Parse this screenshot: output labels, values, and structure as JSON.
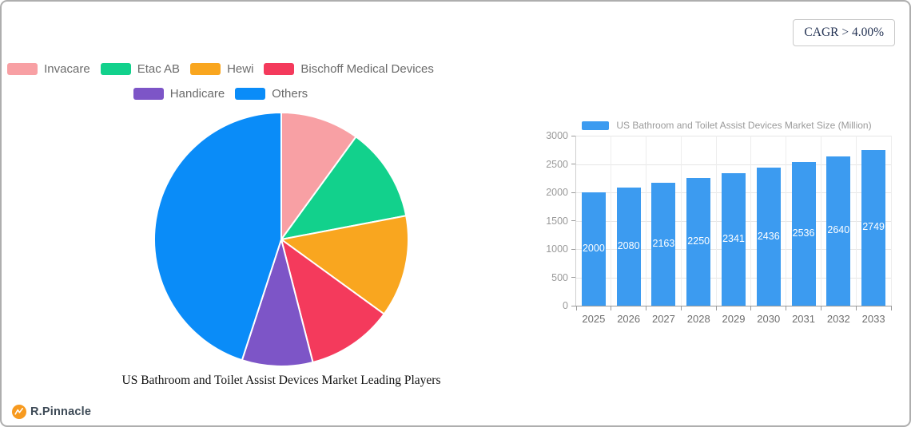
{
  "page": {
    "cagr_badge": "CAGR > 4.00%",
    "brand": "R.Pinnacle"
  },
  "colors": {
    "pie_border": "#ffffff",
    "bar_blue": "#3c9bf0",
    "brand_orange": "#f79a1f",
    "grid_line": "#e6e6e6",
    "axis_line": "#9a9a9a"
  },
  "chart_data": [
    {
      "type": "pie",
      "title": "US Bathroom and Toilet Assist Devices Market Leading Players",
      "labels": [
        "Invacare",
        "Etac AB",
        "Hewi",
        "Bischoff Medical Devices",
        "Handicare",
        "Others"
      ],
      "values_pct": [
        10,
        12,
        13,
        11,
        9,
        45
      ],
      "colors": [
        "#f8a0a4",
        "#12d18c",
        "#f9a61f",
        "#f43a5c",
        "#7d55c7",
        "#0a8cf8"
      ],
      "legend_rows": [
        [
          0,
          1,
          2,
          3
        ],
        [
          4,
          5
        ]
      ],
      "legend_position": "top",
      "start_angle_deg": 0,
      "clockwise": true
    },
    {
      "type": "bar",
      "legend": "US Bathroom and Toilet Assist Devices Market Size (Million)",
      "categories": [
        "2025",
        "2026",
        "2027",
        "2028",
        "2029",
        "2030",
        "2031",
        "2032",
        "2033"
      ],
      "values": [
        2000,
        2080,
        2163,
        2250,
        2341,
        2436,
        2536,
        2640,
        2749
      ],
      "bar_color": "#3c9bf0",
      "ylim": [
        0,
        3000
      ],
      "yticks": [
        0,
        500,
        1000,
        1500,
        2000,
        2500,
        3000
      ],
      "grid": true,
      "value_labels": "inside-center",
      "legend_position": "top"
    }
  ]
}
